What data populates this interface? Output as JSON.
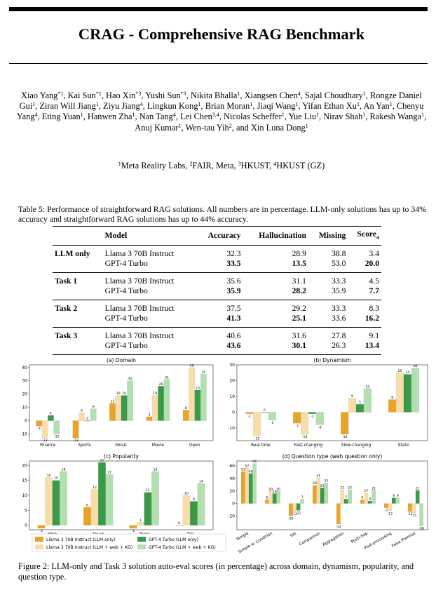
{
  "title": "CRAG - Comprehensive RAG Benchmark",
  "authors": [
    {
      "name": "Xiao Yang",
      "sup": "*1"
    },
    {
      "name": "Kai Sun",
      "sup": "*1"
    },
    {
      "name": "Hao Xin",
      "sup": "*3"
    },
    {
      "name": "Yushi Sun",
      "sup": "*3"
    },
    {
      "name": "Nikita Bhalla",
      "sup": "1"
    },
    {
      "name": "Xiangsen Chen",
      "sup": "4"
    },
    {
      "name": "Sajal Choudhary",
      "sup": "1"
    },
    {
      "name": "Rongze Daniel Gui",
      "sup": "1"
    },
    {
      "name": "Ziran Will Jiang",
      "sup": "1"
    },
    {
      "name": "Ziyu Jiang",
      "sup": "4"
    },
    {
      "name": "Lingkun Kong",
      "sup": "1"
    },
    {
      "name": "Brian Moran",
      "sup": "1"
    },
    {
      "name": "Jiaqi Wang",
      "sup": "1"
    },
    {
      "name": "Yifan Ethan Xu",
      "sup": "1"
    },
    {
      "name": "An Yan",
      "sup": "1"
    },
    {
      "name": "Chenyu Yang",
      "sup": "4"
    },
    {
      "name": "Eting Yuan",
      "sup": "1"
    },
    {
      "name": "Hanwen Zha",
      "sup": "1"
    },
    {
      "name": "Nan Tang",
      "sup": "4"
    },
    {
      "name": "Lei Chen",
      "sup": "3,4"
    },
    {
      "name": "Nicolas Scheffer",
      "sup": "1"
    },
    {
      "name": "Yue Liu",
      "sup": "1"
    },
    {
      "name": "Nirav Shah",
      "sup": "1"
    },
    {
      "name": "Rakesh Wanga",
      "sup": "1"
    },
    {
      "name": "Anuj Kumar",
      "sup": "1"
    },
    {
      "name": "Wen-tau Yih",
      "sup": "2"
    },
    {
      "name": "Xin Luna Dong",
      "sup": "1"
    }
  ],
  "affiliations": [
    {
      "sup": "1",
      "name": "Meta Reality Labs"
    },
    {
      "sup": "2",
      "name": "FAIR, Meta"
    },
    {
      "sup": "3",
      "name": "HKUST"
    },
    {
      "sup": "4",
      "name": "HKUST (GZ)"
    }
  ],
  "table": {
    "caption": "Table 5: Performance of straightforward RAG solutions. All numbers are in percentage. LLM-only solutions has up to 34% accuracy and straightforward RAG solutions has up to 44% accuracy.",
    "headers": [
      "",
      "Model",
      "Accuracy",
      "Hallucination",
      "Missing",
      "Score"
    ],
    "score_subscript": "a",
    "groups": [
      {
        "label": "LLM only",
        "rows": [
          {
            "model": "Llama 3 70B Instruct",
            "values": [
              "32.3",
              "28.9",
              "38.8",
              "3.4"
            ],
            "bold": [
              false,
              false,
              false,
              false
            ]
          },
          {
            "model": "GPT-4 Turbo",
            "values": [
              "33.5",
              "13.5",
              "53.0",
              "20.0"
            ],
            "bold": [
              true,
              true,
              false,
              true
            ]
          }
        ]
      },
      {
        "label": "Task 1",
        "rows": [
          {
            "model": "Llama 3 70B Instruct",
            "values": [
              "35.6",
              "31.1",
              "33.3",
              "4.5"
            ],
            "bold": [
              false,
              false,
              false,
              false
            ]
          },
          {
            "model": "GPT-4 Turbo",
            "values": [
              "35.9",
              "28.2",
              "35.9",
              "7.7"
            ],
            "bold": [
              true,
              true,
              false,
              true
            ]
          }
        ]
      },
      {
        "label": "Task 2",
        "rows": [
          {
            "model": "Llama 3 70B Instruct",
            "values": [
              "37.5",
              "29.2",
              "33.3",
              "8.3"
            ],
            "bold": [
              false,
              false,
              false,
              false
            ]
          },
          {
            "model": "GPT-4 Turbo",
            "values": [
              "41.3",
              "25.1",
              "33.6",
              "16.2"
            ],
            "bold": [
              true,
              true,
              false,
              true
            ]
          }
        ]
      },
      {
        "label": "Task 3",
        "rows": [
          {
            "model": "Llama 3 70B Instruct",
            "values": [
              "40.6",
              "31.6",
              "27.8",
              "9.1"
            ],
            "bold": [
              false,
              false,
              false,
              false
            ]
          },
          {
            "model": "GPT-4 Turbo",
            "values": [
              "43.6",
              "30.1",
              "26.3",
              "13.4"
            ],
            "bold": [
              true,
              true,
              false,
              true
            ]
          }
        ]
      }
    ]
  },
  "legend": [
    {
      "name": "Llama 3 70B Instruct (LLM only)",
      "color": "#e8a329"
    },
    {
      "name": "Llama 3 70B Instruct (LLM + web + KG)",
      "color": "#f8ddaa"
    },
    {
      "name": "GPT-4 Turbo (LLM only)",
      "color": "#3a9a48"
    },
    {
      "name": "GPT-4 Turbo (LLM + web + KG)",
      "color": "#b2dfb0"
    }
  ],
  "chart_data": [
    {
      "type": "bar",
      "title": "(a) Domain",
      "categories": [
        "Finance",
        "Sports",
        "Music",
        "Movie",
        "Open"
      ],
      "series": [
        {
          "name": "Llama 3 70B Instruct (LLM only)",
          "values": [
            -4,
            -13,
            13,
            3,
            8
          ]
        },
        {
          "name": "Llama 3 70B Instruct (LLM + web + KG)",
          "values": [
            -13,
            6,
            19,
            19,
            40
          ]
        },
        {
          "name": "GPT-4 Turbo (LLM only)",
          "values": [
            4,
            0,
            19,
            26,
            23
          ]
        },
        {
          "name": "GPT-4 Turbo (LLM + web + KG)",
          "values": [
            -10,
            9,
            30,
            31,
            35
          ]
        }
      ],
      "ylim": [
        -15,
        42
      ],
      "yticks": [
        "-10",
        "0",
        "10",
        "20",
        "30",
        "40"
      ],
      "yticks_values": [
        -10,
        0,
        10,
        20,
        30,
        40
      ]
    },
    {
      "type": "bar",
      "title": "(b) Dynamism",
      "categories": [
        "Real-time",
        "Fast-changing",
        "Slow-changing",
        "Static"
      ],
      "series": [
        {
          "name": "Llama 3 70B Instruct (LLM only)",
          "values": [
            -1,
            -7,
            -14,
            8
          ]
        },
        {
          "name": "Llama 3 70B Instruct (LLM + web + KG)",
          "values": [
            -15,
            -14,
            9,
            25
          ]
        },
        {
          "name": "GPT-4 Turbo (LLM only)",
          "values": [
            0,
            -1,
            5,
            24
          ]
        },
        {
          "name": "GPT-4 Turbo (LLM + web + KG)",
          "values": [
            -5,
            -8,
            15,
            28
          ]
        }
      ],
      "ylim": [
        -18,
        30
      ],
      "yticks": [
        "-10",
        "0",
        "10",
        "20",
        "30"
      ],
      "yticks_values": [
        -10,
        0,
        10,
        20,
        30
      ]
    },
    {
      "type": "bar",
      "title": "(c) Popularity",
      "categories": [
        "Web",
        "Head",
        "Torso",
        "Tail"
      ],
      "series": [
        {
          "name": "Llama 3 70B Instruct (LLM only)",
          "values": [
            -1,
            6,
            -1,
            0
          ]
        },
        {
          "name": "Llama 3 70B Instruct (LLM + web + KG)",
          "values": [
            16,
            12,
            1,
            10
          ]
        },
        {
          "name": "GPT-4 Turbo (LLM only)",
          "values": [
            15,
            21,
            11,
            8
          ]
        },
        {
          "name": "GPT-4 Turbo (LLM + web + KG)",
          "values": [
            18,
            17,
            18,
            14
          ]
        }
      ],
      "ylim": [
        -1.5,
        21.5
      ],
      "yticks": [
        "0",
        "5",
        "10",
        "15",
        "20"
      ],
      "yticks_values": [
        0,
        5,
        10,
        15,
        20
      ]
    },
    {
      "type": "bar",
      "title": "(d) Question type (web question only)",
      "categories": [
        "Simple",
        "Simple w. Condition",
        "Set",
        "Comparison",
        "Aggregation",
        "Multi-hop",
        "Post-processing",
        "False Premise"
      ],
      "series": [
        {
          "name": "Llama 3 70B Instruct (LLM only)",
          "values": [
            51,
            6,
            -20,
            29,
            -33,
            6,
            -7,
            -13
          ]
        },
        {
          "name": "Llama 3 70B Instruct (LLM + web + KG)",
          "values": [
            57,
            20,
            -13,
            41,
            22,
            17,
            -12,
            -15
          ]
        },
        {
          "name": "GPT-4 Turbo (LLM only)",
          "values": [
            48,
            16,
            -11,
            25,
            7,
            4,
            9,
            21
          ]
        },
        {
          "name": "GPT-4 Turbo (LLM + web + KG)",
          "values": [
            64,
            20,
            7,
            33,
            22,
            21,
            9,
            -36
          ]
        }
      ],
      "ylim": [
        -42,
        68
      ],
      "yticks": [
        "-20",
        "0",
        "20",
        "40",
        "60"
      ],
      "yticks_values": [
        -20,
        0,
        20,
        40,
        60
      ]
    }
  ],
  "figure_caption": "Figure 2: LLM-only and Task 3 solution auto-eval scores (in percentage) across domain, dynamism, popularity, and question type."
}
